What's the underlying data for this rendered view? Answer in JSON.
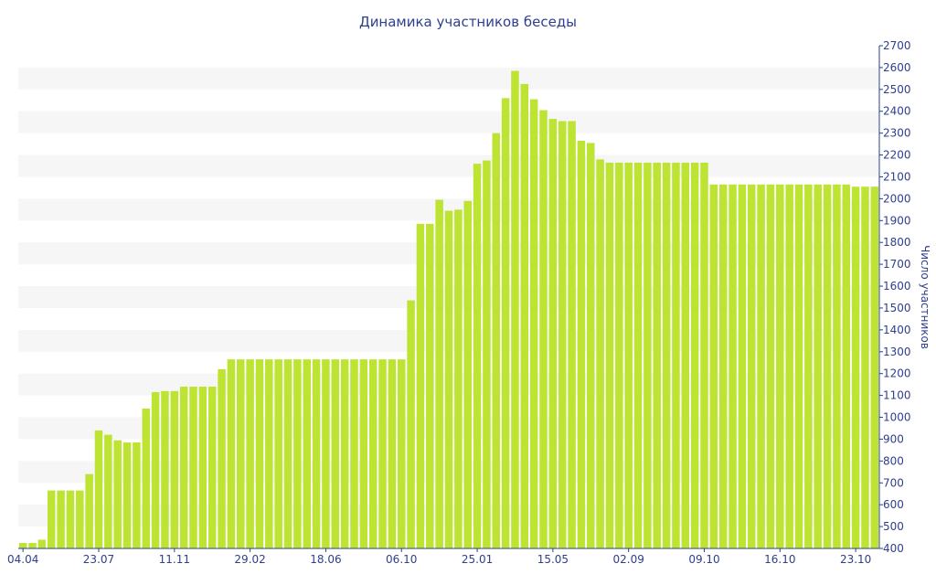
{
  "chart_data": {
    "type": "bar",
    "title": "Динамика участников беседы",
    "xlabel": "",
    "ylabel": "Число участников",
    "ylim": [
      400,
      2700
    ],
    "ytick_step": 100,
    "y_axis_position": "right",
    "grid": "alternating horizontal bands",
    "legend": "none",
    "colors": {
      "bar": "#bde333",
      "band": "#f6f6f6",
      "axis": "#2e3f8c",
      "text": "#2e3f8c"
    },
    "x_tick_labels": [
      {
        "label": "04.04",
        "index": 0
      },
      {
        "label": "23.07",
        "index": 8
      },
      {
        "label": "11.11",
        "index": 16
      },
      {
        "label": "29.02",
        "index": 24
      },
      {
        "label": "18.06",
        "index": 32
      },
      {
        "label": "06.10",
        "index": 40
      },
      {
        "label": "25.01",
        "index": 48
      },
      {
        "label": "15.05",
        "index": 56
      },
      {
        "label": "02.09",
        "index": 64
      },
      {
        "label": "09.10",
        "index": 72
      },
      {
        "label": "16.10",
        "index": 80
      },
      {
        "label": "23.10",
        "index": 88
      }
    ],
    "values": [
      425,
      425,
      440,
      665,
      665,
      665,
      665,
      740,
      940,
      920,
      895,
      885,
      885,
      1040,
      1115,
      1120,
      1120,
      1140,
      1140,
      1140,
      1140,
      1220,
      1265,
      1265,
      1265,
      1265,
      1265,
      1265,
      1265,
      1265,
      1265,
      1265,
      1265,
      1265,
      1265,
      1265,
      1265,
      1265,
      1265,
      1265,
      1265,
      1535,
      1885,
      1885,
      1995,
      1945,
      1950,
      1990,
      2160,
      2175,
      2300,
      2460,
      2585,
      2525,
      2455,
      2405,
      2365,
      2355,
      2355,
      2265,
      2255,
      2180,
      2165,
      2165,
      2165,
      2165,
      2165,
      2165,
      2165,
      2165,
      2165,
      2165,
      2165,
      2065,
      2065,
      2065,
      2065,
      2065,
      2065,
      2065,
      2065,
      2065,
      2065,
      2065,
      2065,
      2065,
      2065,
      2065,
      2055,
      2055,
      2055
    ]
  }
}
